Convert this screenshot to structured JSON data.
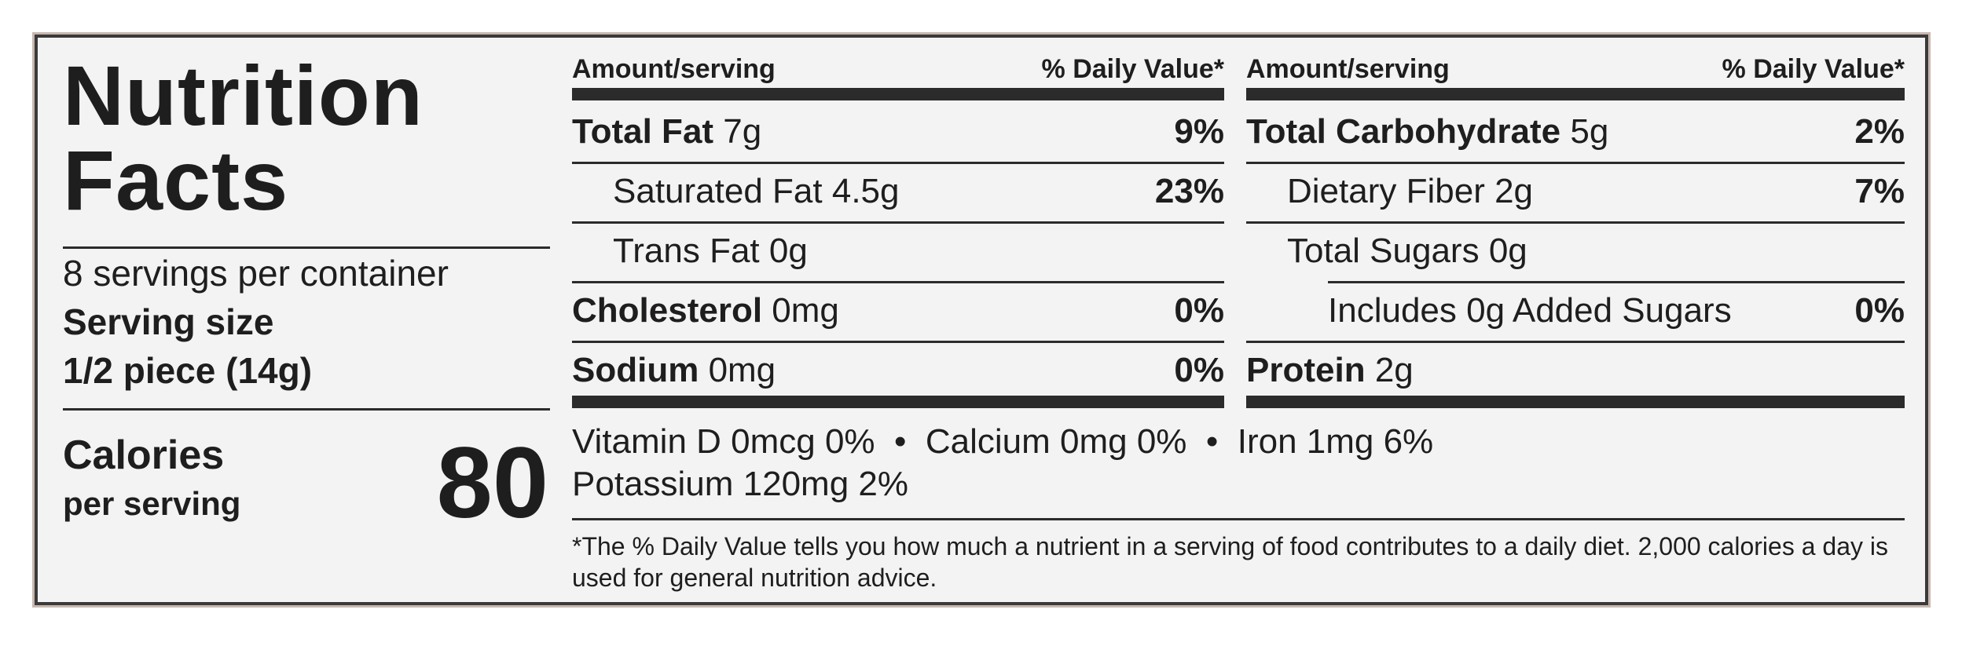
{
  "title_line1": "Nutrition",
  "title_line2": "Facts",
  "servings_per_container": "8 servings per container",
  "serving_size_label": "Serving size",
  "serving_size_value": "1/2 piece (14g)",
  "calories_label": "Calories",
  "calories_sub": "per serving",
  "calories_value": "80",
  "left_table": {
    "header_amount": "Amount/serving",
    "header_dv": "% Daily Value*",
    "rows": [
      {
        "name": "Total Fat",
        "amount": "7g",
        "pct": "9%"
      },
      {
        "name": "Saturated Fat",
        "amount": "4.5g",
        "pct": "23%"
      },
      {
        "name": "Trans Fat",
        "amount": "0g",
        "pct": ""
      },
      {
        "name": "Cholesterol",
        "amount": "0mg",
        "pct": "0%"
      },
      {
        "name": "Sodium",
        "amount": "0mg",
        "pct": "0%"
      }
    ]
  },
  "right_table": {
    "header_amount": "Amount/serving",
    "header_dv": "% Daily Value*",
    "rows": [
      {
        "name": "Total Carbohydrate",
        "amount": "5g",
        "pct": "2%"
      },
      {
        "name": "Dietary Fiber",
        "amount": "2g",
        "pct": "7%"
      },
      {
        "name": "Total Sugars",
        "amount": "0g",
        "pct": ""
      },
      {
        "name": "Includes 0g Added Sugars",
        "amount": "",
        "pct": "0%"
      },
      {
        "name": "Protein",
        "amount": "2g",
        "pct": ""
      }
    ]
  },
  "vitamins_line1": "Vitamin D 0mcg 0%  •  Calcium 0mg 0%  •  Iron 1mg 6%",
  "vitamins_line2": "Potassium 120mg 2%",
  "footnote": "*The % Daily Value tells you how much a nutrient in a serving of food contributes to a daily diet. 2,000 calories a day is used for general nutrition advice."
}
